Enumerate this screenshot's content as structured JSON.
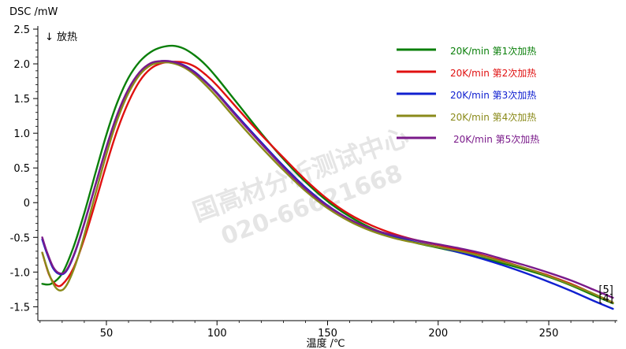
{
  "chart_data": {
    "type": "line",
    "title": "",
    "ylabel": "DSC /mW",
    "xlabel": "温度 /℃",
    "annotation": "↓ 放热",
    "xlim": [
      19,
      281
    ],
    "ylim": [
      -1.7,
      2.5
    ],
    "x_ticks": [
      50,
      100,
      150,
      200,
      250
    ],
    "x_tick_labels": [
      "50",
      "100",
      "150",
      "200",
      "250"
    ],
    "y_ticks": [
      2.5,
      2.0,
      1.5,
      1.0,
      0.5,
      0,
      -0.5,
      -1.0,
      -1.5
    ],
    "y_tick_labels": [
      "2.5",
      "2.0",
      "1.5",
      "1.0",
      "0.5",
      "0",
      "-0.5",
      "-1.0",
      "-1.5"
    ],
    "grid": false,
    "legend_position": "top-right",
    "watermark_lines": [
      "国高材分析测试中心",
      "020-66621668"
    ],
    "end_markers": [
      "[5]",
      "[4]"
    ],
    "series": [
      {
        "name": "20K/min 第1次加热",
        "color": "#0a7f0a",
        "x": [
          21,
          25,
          30,
          35,
          40,
          45,
          50,
          55,
          60,
          65,
          70,
          75,
          80,
          85,
          90,
          95,
          100,
          110,
          120,
          130,
          140,
          150,
          160,
          170,
          180,
          190,
          200,
          210,
          220,
          230,
          240,
          250,
          260,
          270,
          279
        ],
        "y": [
          -1.17,
          -1.17,
          -1.02,
          -0.65,
          -0.15,
          0.42,
          0.98,
          1.45,
          1.8,
          2.03,
          2.17,
          2.24,
          2.26,
          2.22,
          2.12,
          1.98,
          1.8,
          1.4,
          1.0,
          0.63,
          0.3,
          0.02,
          -0.2,
          -0.37,
          -0.49,
          -0.58,
          -0.65,
          -0.72,
          -0.8,
          -0.88,
          -0.97,
          -1.07,
          -1.19,
          -1.33,
          -1.45
        ]
      },
      {
        "name": "20K/min 第2次加热",
        "color": "#e01010",
        "x": [
          21,
          24,
          27,
          30,
          35,
          40,
          45,
          50,
          55,
          60,
          65,
          70,
          75,
          80,
          85,
          90,
          95,
          100,
          110,
          120,
          130,
          140,
          150,
          160,
          170,
          180,
          190,
          200,
          210,
          220,
          230,
          240,
          250,
          260,
          270,
          279
        ],
        "y": [
          -0.72,
          -1.03,
          -1.18,
          -1.18,
          -0.95,
          -0.52,
          0.0,
          0.55,
          1.05,
          1.45,
          1.75,
          1.93,
          2.01,
          2.03,
          2.02,
          1.96,
          1.84,
          1.69,
          1.33,
          0.98,
          0.65,
          0.33,
          0.05,
          -0.17,
          -0.33,
          -0.45,
          -0.54,
          -0.61,
          -0.68,
          -0.76,
          -0.85,
          -0.95,
          -1.05,
          -1.17,
          -1.31,
          -1.44
        ]
      },
      {
        "name": "20K/min 第3次加热",
        "color": "#1020d0",
        "x": [
          21,
          23,
          26,
          29,
          32,
          36,
          40,
          45,
          50,
          55,
          60,
          65,
          70,
          75,
          80,
          85,
          90,
          95,
          100,
          110,
          120,
          130,
          140,
          150,
          160,
          170,
          180,
          190,
          200,
          210,
          220,
          230,
          240,
          250,
          260,
          270,
          279
        ],
        "y": [
          -0.53,
          -0.72,
          -0.95,
          -1.03,
          -0.98,
          -0.7,
          -0.3,
          0.25,
          0.8,
          1.27,
          1.63,
          1.87,
          2.0,
          2.04,
          2.03,
          1.98,
          1.88,
          1.74,
          1.58,
          1.22,
          0.87,
          0.53,
          0.22,
          -0.04,
          -0.24,
          -0.39,
          -0.49,
          -0.57,
          -0.64,
          -0.72,
          -0.81,
          -0.91,
          -1.02,
          -1.14,
          -1.27,
          -1.41,
          -1.53
        ]
      },
      {
        "name": "20K/min 第4次加热",
        "color": "#8a8a1a",
        "x": [
          21,
          24,
          27,
          30,
          33,
          37,
          41,
          45,
          50,
          55,
          60,
          65,
          70,
          75,
          80,
          85,
          90,
          95,
          100,
          110,
          120,
          130,
          140,
          150,
          160,
          170,
          180,
          190,
          200,
          210,
          220,
          230,
          240,
          250,
          260,
          270,
          279
        ],
        "y": [
          -0.72,
          -1.02,
          -1.22,
          -1.26,
          -1.13,
          -0.8,
          -0.35,
          0.12,
          0.7,
          1.2,
          1.58,
          1.84,
          1.98,
          2.02,
          2.01,
          1.95,
          1.84,
          1.69,
          1.52,
          1.15,
          0.8,
          0.47,
          0.17,
          -0.08,
          -0.27,
          -0.41,
          -0.51,
          -0.58,
          -0.64,
          -0.7,
          -0.77,
          -0.86,
          -0.95,
          -1.06,
          -1.18,
          -1.31,
          -1.44
        ]
      },
      {
        "name": "20K/min 第5次加热",
        "color": "#7a1a8a",
        "x": [
          21,
          23,
          26,
          29,
          32,
          36,
          40,
          45,
          50,
          55,
          60,
          65,
          70,
          75,
          80,
          85,
          90,
          95,
          100,
          110,
          120,
          130,
          140,
          150,
          160,
          170,
          180,
          190,
          200,
          210,
          220,
          230,
          240,
          250,
          260,
          270,
          279
        ],
        "y": [
          -0.5,
          -0.7,
          -0.93,
          -1.02,
          -0.97,
          -0.69,
          -0.3,
          0.25,
          0.8,
          1.28,
          1.64,
          1.88,
          2.01,
          2.04,
          2.03,
          1.97,
          1.87,
          1.73,
          1.57,
          1.2,
          0.85,
          0.51,
          0.2,
          -0.05,
          -0.24,
          -0.38,
          -0.47,
          -0.54,
          -0.6,
          -0.66,
          -0.73,
          -0.82,
          -0.91,
          -1.01,
          -1.12,
          -1.25,
          -1.37
        ]
      }
    ]
  }
}
